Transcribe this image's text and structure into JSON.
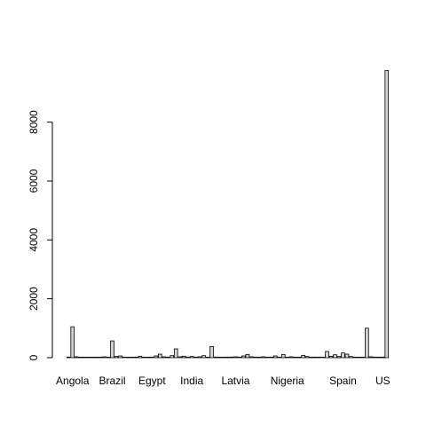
{
  "chart_data": {
    "type": "bar",
    "title": "",
    "xlabel": "",
    "ylabel": "",
    "ylim": [
      0,
      10400
    ],
    "yticks": [
      0,
      2000,
      4000,
      6000,
      8000
    ],
    "ytick_labels": [
      "0",
      "2000",
      "4000",
      "6000",
      "8000"
    ],
    "x_labels": [
      {
        "text": "Angola",
        "bar_index": 1
      },
      {
        "text": "Brazil",
        "bar_index": 11
      },
      {
        "text": "Egypt",
        "bar_index": 21
      },
      {
        "text": "India",
        "bar_index": 31
      },
      {
        "text": "Latvia",
        "bar_index": 42
      },
      {
        "text": "Nigeria",
        "bar_index": 55
      },
      {
        "text": "Spain",
        "bar_index": 69
      },
      {
        "text": "US",
        "bar_index": 79
      }
    ],
    "values": [
      20,
      1050,
      30,
      0,
      0,
      10,
      5,
      0,
      20,
      30,
      15,
      570,
      40,
      60,
      20,
      10,
      10,
      0,
      50,
      10,
      0,
      20,
      60,
      120,
      30,
      20,
      70,
      300,
      30,
      50,
      0,
      40,
      20,
      30,
      70,
      0,
      380,
      20,
      0,
      10,
      20,
      20,
      30,
      20,
      60,
      110,
      30,
      20,
      0,
      30,
      0,
      0,
      60,
      0,
      110,
      20,
      30,
      0,
      0,
      80,
      40,
      0,
      20,
      20,
      0,
      210,
      50,
      100,
      40,
      160,
      120,
      40,
      0,
      0,
      0,
      1000,
      30,
      20,
      20,
      20,
      9750
    ],
    "bar_fill": "#d3d3d3",
    "bar_stroke": "#000000"
  }
}
